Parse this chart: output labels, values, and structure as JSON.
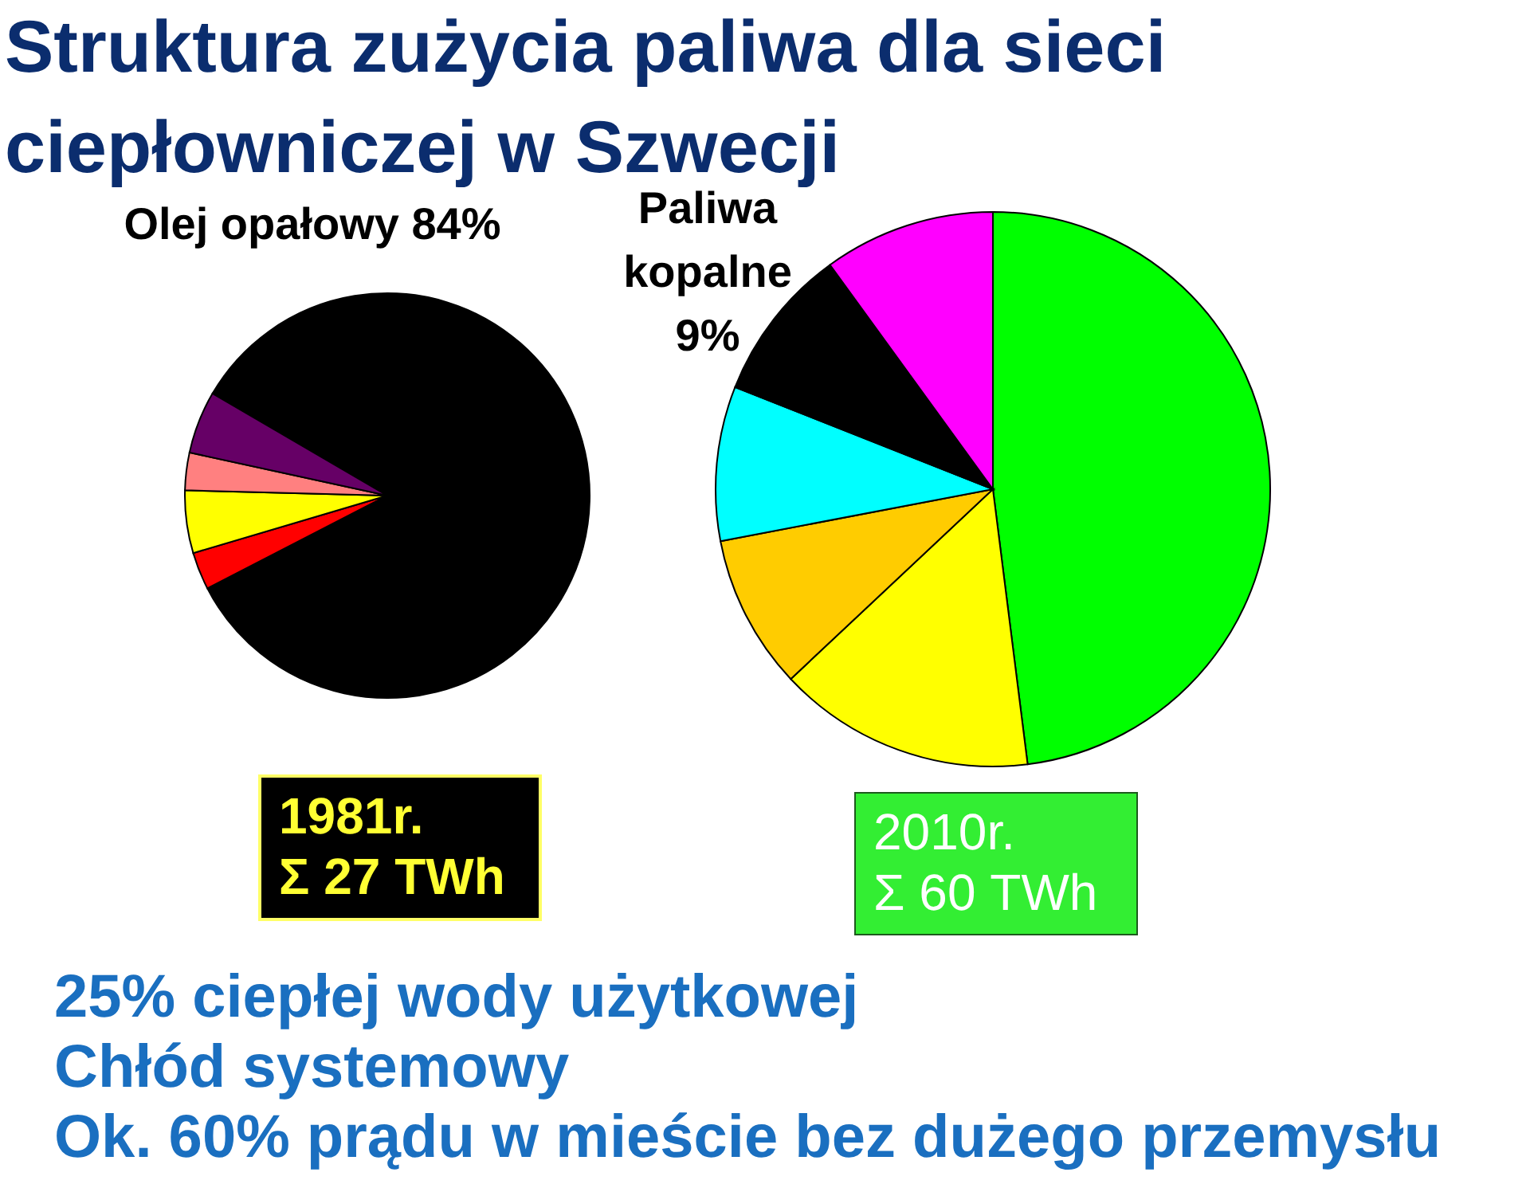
{
  "chart_data": [
    {
      "type": "pie",
      "title": "Struktura zużycia paliwa dla sieci ciepłowniczej w Szwecji",
      "subtitle": "1981r.\nΣ 27 TWh",
      "categories": [
        "Olej opałowy",
        null,
        null,
        null,
        null
      ],
      "values": [
        84,
        3,
        5,
        3,
        5
      ],
      "value_labels": [
        "84%",
        null,
        null,
        null,
        null
      ],
      "colors": [
        "#000000",
        "#ff0000",
        "#ffff00",
        "#ff8080",
        "#660066"
      ],
      "annotations": [
        "25% ciepłej wody użytkowej",
        "Chłód systemowy",
        "Ok. 60% prądu w mieście bez dużego przemysłu"
      ]
    },
    {
      "type": "pie",
      "subtitle": "2010r.\nΣ 60 TWh",
      "categories": [
        null,
        null,
        null,
        null,
        "Paliwa kopalne",
        null
      ],
      "values": [
        48,
        15,
        9,
        9,
        9,
        10
      ],
      "value_labels": [
        null,
        null,
        null,
        null,
        "9%",
        null
      ],
      "colors": [
        "#00ff00",
        "#ffff00",
        "#ffcc00",
        "#00ffff",
        "#000000",
        "#ff00ff"
      ]
    }
  ]
}
